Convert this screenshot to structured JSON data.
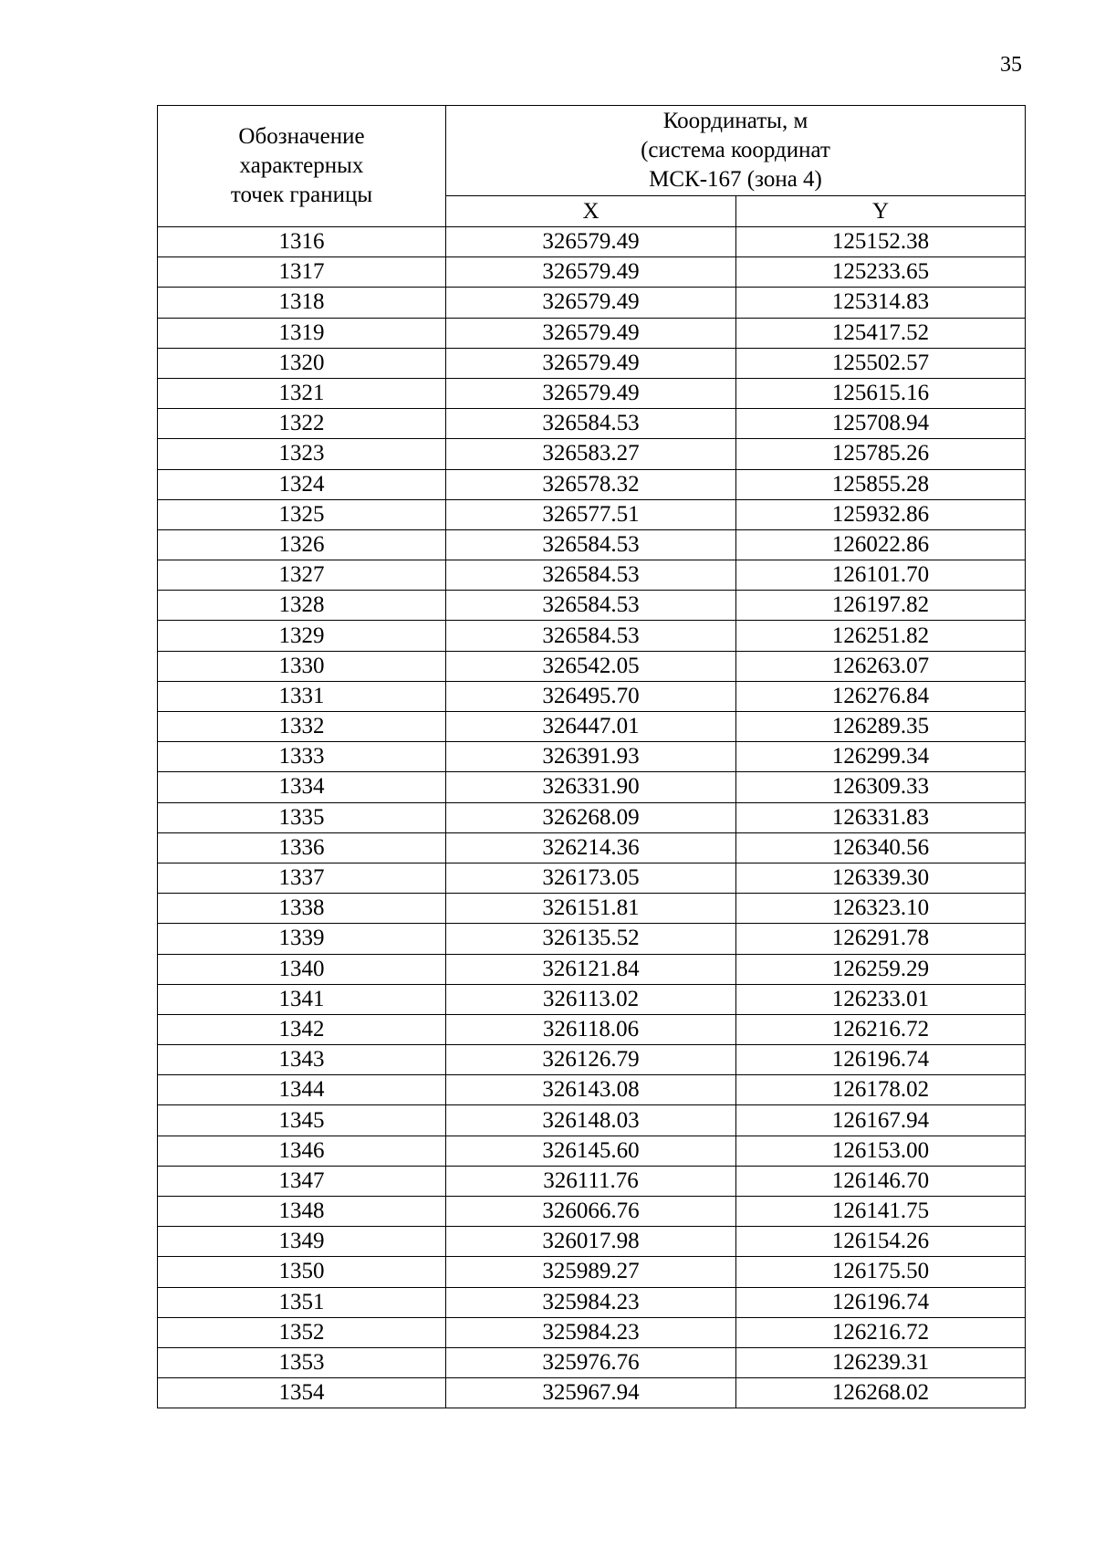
{
  "page_number": "35",
  "table": {
    "header": {
      "point_label": "Обозначение характерных точек границы",
      "coords_label_line1": "Координаты, м",
      "coords_label_line2": "(система координат",
      "coords_label_line3": "МСК-167 (зона 4)",
      "x_label": "X",
      "y_label": "Y"
    },
    "rows": [
      [
        "1316",
        "326579.49",
        "125152.38"
      ],
      [
        "1317",
        "326579.49",
        "125233.65"
      ],
      [
        "1318",
        "326579.49",
        "125314.83"
      ],
      [
        "1319",
        "326579.49",
        "125417.52"
      ],
      [
        "1320",
        "326579.49",
        "125502.57"
      ],
      [
        "1321",
        "326579.49",
        "125615.16"
      ],
      [
        "1322",
        "326584.53",
        "125708.94"
      ],
      [
        "1323",
        "326583.27",
        "125785.26"
      ],
      [
        "1324",
        "326578.32",
        "125855.28"
      ],
      [
        "1325",
        "326577.51",
        "125932.86"
      ],
      [
        "1326",
        "326584.53",
        "126022.86"
      ],
      [
        "1327",
        "326584.53",
        "126101.70"
      ],
      [
        "1328",
        "326584.53",
        "126197.82"
      ],
      [
        "1329",
        "326584.53",
        "126251.82"
      ],
      [
        "1330",
        "326542.05",
        "126263.07"
      ],
      [
        "1331",
        "326495.70",
        "126276.84"
      ],
      [
        "1332",
        "326447.01",
        "126289.35"
      ],
      [
        "1333",
        "326391.93",
        "126299.34"
      ],
      [
        "1334",
        "326331.90",
        "126309.33"
      ],
      [
        "1335",
        "326268.09",
        "126331.83"
      ],
      [
        "1336",
        "326214.36",
        "126340.56"
      ],
      [
        "1337",
        "326173.05",
        "126339.30"
      ],
      [
        "1338",
        "326151.81",
        "126323.10"
      ],
      [
        "1339",
        "326135.52",
        "126291.78"
      ],
      [
        "1340",
        "326121.84",
        "126259.29"
      ],
      [
        "1341",
        "326113.02",
        "126233.01"
      ],
      [
        "1342",
        "326118.06",
        "126216.72"
      ],
      [
        "1343",
        "326126.79",
        "126196.74"
      ],
      [
        "1344",
        "326143.08",
        "126178.02"
      ],
      [
        "1345",
        "326148.03",
        "126167.94"
      ],
      [
        "1346",
        "326145.60",
        "126153.00"
      ],
      [
        "1347",
        "326111.76",
        "126146.70"
      ],
      [
        "1348",
        "326066.76",
        "126141.75"
      ],
      [
        "1349",
        "326017.98",
        "126154.26"
      ],
      [
        "1350",
        "325989.27",
        "126175.50"
      ],
      [
        "1351",
        "325984.23",
        "126196.74"
      ],
      [
        "1352",
        "325984.23",
        "126216.72"
      ],
      [
        "1353",
        "325976.76",
        "126239.31"
      ],
      [
        "1354",
        "325967.94",
        "126268.02"
      ]
    ]
  }
}
